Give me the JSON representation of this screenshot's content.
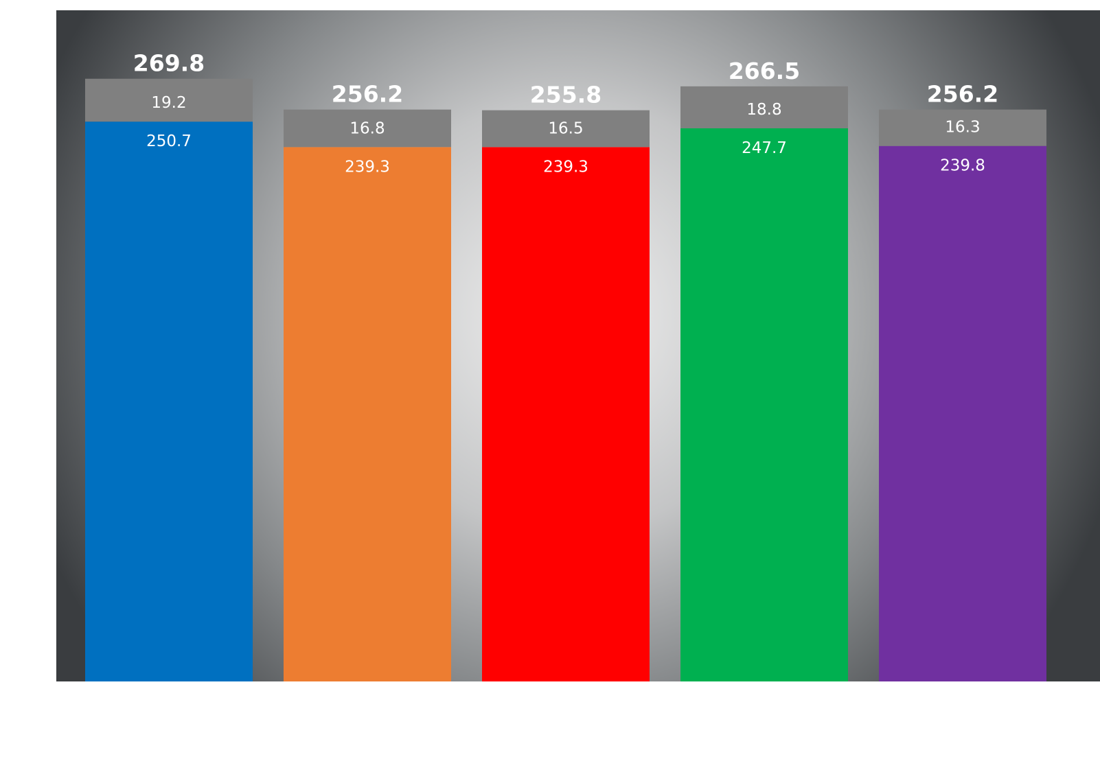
{
  "colors": {
    "top_segment": "#808080",
    "plot_center": "#f0f0f0",
    "plot_edge": "#3a3d40"
  },
  "chart_data": {
    "type": "bar",
    "stacked": true,
    "title": "",
    "xlabel": "",
    "ylabel": "",
    "ylim": [
      0,
      280
    ],
    "grid": false,
    "legend": "none",
    "categories": [
      "",
      "",
      "",
      "",
      ""
    ],
    "series": [
      {
        "values": [
          250.7,
          239.3,
          239.3,
          247.7,
          239.8
        ],
        "labels": [
          "250.7",
          "239.3",
          "239.3",
          "247.7",
          "239.8"
        ],
        "colors": [
          "#0070c0",
          "#ed7d31",
          "#ff0000",
          "#00b050",
          "#7030a0"
        ]
      },
      {
        "values": [
          19.2,
          16.8,
          16.5,
          18.8,
          16.3
        ],
        "labels": [
          "19.2",
          "16.8",
          "16.5",
          "18.8",
          "16.3"
        ],
        "color": "#808080"
      }
    ],
    "totals": [
      269.8,
      256.2,
      255.8,
      266.5,
      256.2
    ],
    "total_labels": [
      "269.8",
      "256.2",
      "255.8",
      "266.5",
      "256.2"
    ]
  }
}
